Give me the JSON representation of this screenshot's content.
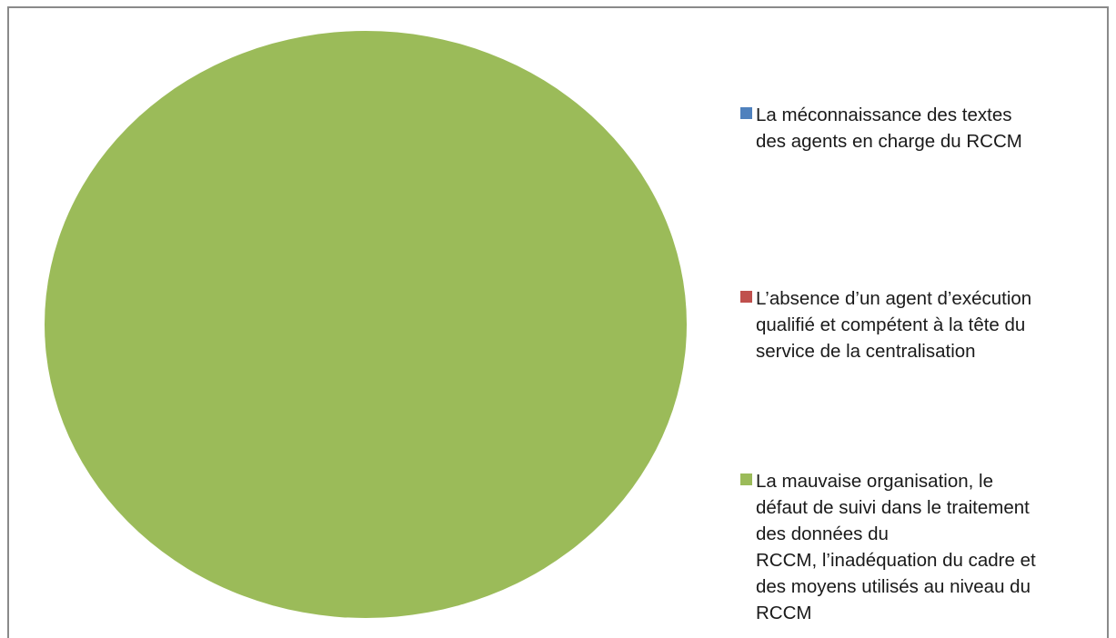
{
  "chart_data": {
    "type": "pie",
    "categories": [
      "La méconnaissance des textes\ndes agents en charge du RCCM",
      "L’absence d’un agent d’exécution\nqualifié et compétent à la tête du\nservice de la centralisation",
      "La mauvaise organisation, le\ndéfaut de suivi dans le traitement\ndes données du\nRCCM, l’inadéquation du cadre et\ndes moyens utilisés au niveau du\nRCCM"
    ],
    "values": [
      0,
      0,
      100
    ],
    "colors": [
      "#4f81bd",
      "#c0504d",
      "#9bbb59"
    ],
    "legend": "right"
  }
}
